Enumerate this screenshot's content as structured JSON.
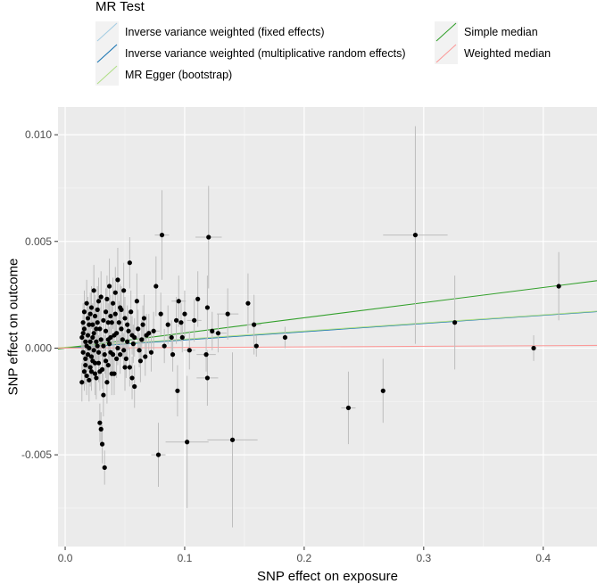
{
  "chart_data": {
    "type": "scatter",
    "title": "",
    "xlabel": "SNP effect on exposure",
    "ylabel": "SNP effect on outcome",
    "xlim": [
      -0.006,
      0.445
    ],
    "ylim": [
      -0.0093,
      0.0113
    ],
    "x_ticks": [
      0.0,
      0.1,
      0.2,
      0.3,
      0.4
    ],
    "x_tick_labels": [
      "0.0",
      "0.1",
      "0.2",
      "0.3",
      "0.4"
    ],
    "y_ticks": [
      -0.005,
      0.0,
      0.005,
      0.01
    ],
    "y_tick_labels": [
      "-0.005",
      "0.000",
      "0.005",
      "0.010"
    ],
    "grid": true,
    "legend": {
      "title": "MR Test",
      "position": "top",
      "entries": [
        {
          "label": "Inverse variance weighted (fixed effects)",
          "color": "#a6cee3"
        },
        {
          "label": "Inverse variance weighted (multiplicative random effects)",
          "color": "#1f78b4"
        },
        {
          "label": "MR Egger (bootstrap)",
          "color": "#b2df8a"
        },
        {
          "label": "Simple median",
          "color": "#33a02c"
        },
        {
          "label": "Weighted median",
          "color": "#fb9a99"
        }
      ]
    },
    "lines": [
      {
        "name": "Inverse variance weighted (fixed effects)",
        "color": "#a6cee3",
        "intercept": 0.0,
        "slope": 0.00385
      },
      {
        "name": "Inverse variance weighted (multiplicative random effects)",
        "color": "#1f78b4",
        "intercept": 0.0,
        "slope": 0.00385
      },
      {
        "name": "MR Egger (bootstrap)",
        "color": "#b2df8a",
        "intercept": 4e-05,
        "slope": 0.0038
      },
      {
        "name": "Simple median",
        "color": "#33a02c",
        "intercept": 0.0,
        "slope": 0.0071
      },
      {
        "name": "Weighted median",
        "color": "#fb9a99",
        "intercept": 0.0,
        "slope": 0.00028
      }
    ],
    "points": [
      {
        "x": 0.081,
        "y": 0.0053,
        "xerr": 0.006,
        "yerr": 0.0021
      },
      {
        "x": 0.12,
        "y": 0.0052,
        "xerr": 0.011,
        "yerr": 0.0024
      },
      {
        "x": 0.293,
        "y": 0.0053,
        "xerr": 0.027,
        "yerr": 0.0051
      },
      {
        "x": 0.413,
        "y": 0.0029,
        "xerr": 0.0,
        "yerr": 0.0016
      },
      {
        "x": 0.392,
        "y": 0.0,
        "xerr": 0.0,
        "yerr": 0.0006
      },
      {
        "x": 0.326,
        "y": 0.0012,
        "xerr": 0.0,
        "yerr": 0.0022
      },
      {
        "x": 0.237,
        "y": -0.0028,
        "xerr": 0.006,
        "yerr": 0.0017
      },
      {
        "x": 0.266,
        "y": -0.002,
        "xerr": 0.0,
        "yerr": 0.0015
      },
      {
        "x": 0.184,
        "y": 0.0005,
        "xerr": 0.0,
        "yerr": 0.0005
      },
      {
        "x": 0.16,
        "y": 0.0001,
        "xerr": 0.0,
        "yerr": 0.0005
      },
      {
        "x": 0.158,
        "y": 0.0011,
        "xerr": 0.006,
        "yerr": 0.0014
      },
      {
        "x": 0.153,
        "y": 0.0021,
        "xerr": 0.0,
        "yerr": 0.0014
      },
      {
        "x": 0.14,
        "y": -0.0043,
        "xerr": 0.021,
        "yerr": 0.0041
      },
      {
        "x": 0.102,
        "y": -0.0044,
        "xerr": 0.018,
        "yerr": 0.0031
      },
      {
        "x": 0.078,
        "y": -0.005,
        "xerr": 0.006,
        "yerr": 0.0015
      },
      {
        "x": 0.094,
        "y": -0.002,
        "xerr": 0.0,
        "yerr": 0.0012
      },
      {
        "x": 0.118,
        "y": -0.0003,
        "xerr": 0.008,
        "yerr": 0.0008
      },
      {
        "x": 0.119,
        "y": -0.0014,
        "xerr": 0.009,
        "yerr": 0.0013
      },
      {
        "x": 0.136,
        "y": 0.0016,
        "xerr": 0.009,
        "yerr": 0.0012
      },
      {
        "x": 0.128,
        "y": 0.0007,
        "xerr": 0.007,
        "yerr": 0.0009
      },
      {
        "x": 0.123,
        "y": 0.0008,
        "xerr": 0.0,
        "yerr": 0.0009
      },
      {
        "x": 0.119,
        "y": 0.0019,
        "xerr": 0.0,
        "yerr": 0.0015
      },
      {
        "x": 0.111,
        "y": 0.0023,
        "xerr": 0.0,
        "yerr": 0.0013
      },
      {
        "x": 0.108,
        "y": 0.0013,
        "xerr": 0.006,
        "yerr": 0.001
      },
      {
        "x": 0.104,
        "y": -0.0001,
        "xerr": 0.005,
        "yerr": 0.0009
      },
      {
        "x": 0.1,
        "y": 0.0016,
        "xerr": 0.0,
        "yerr": 0.0011
      },
      {
        "x": 0.098,
        "y": 0.0005,
        "xerr": 0.0,
        "yerr": 0.0007
      },
      {
        "x": 0.095,
        "y": 0.0022,
        "xerr": 0.006,
        "yerr": 0.0012
      },
      {
        "x": 0.093,
        "y": 0.0013,
        "xerr": 0.0,
        "yerr": 0.0011
      },
      {
        "x": 0.089,
        "y": 0.0005,
        "xerr": 0.0,
        "yerr": 0.0008
      },
      {
        "x": 0.086,
        "y": 0.0011,
        "xerr": 0.0,
        "yerr": 0.0009
      },
      {
        "x": 0.08,
        "y": 0.0016,
        "xerr": 0.0,
        "yerr": 0.001
      },
      {
        "x": 0.076,
        "y": 0.0029,
        "xerr": 0.0,
        "yerr": 0.0014
      },
      {
        "x": 0.074,
        "y": 0.0008,
        "xerr": 0.005,
        "yerr": 0.0009
      },
      {
        "x": 0.072,
        "y": -0.0002,
        "xerr": 0.0,
        "yerr": 0.0009
      },
      {
        "x": 0.068,
        "y": 0.0006,
        "xerr": 0.0,
        "yerr": 0.001
      },
      {
        "x": 0.066,
        "y": 0.0014,
        "xerr": 0.0,
        "yerr": 0.0011
      },
      {
        "x": 0.063,
        "y": -0.0006,
        "xerr": 0.0,
        "yerr": 0.001
      },
      {
        "x": 0.06,
        "y": 0.0022,
        "xerr": 0.0,
        "yerr": 0.0013
      },
      {
        "x": 0.058,
        "y": 0.0005,
        "xerr": 0.0,
        "yerr": 0.0009
      },
      {
        "x": 0.056,
        "y": -0.0014,
        "xerr": 0.0,
        "yerr": 0.001
      },
      {
        "x": 0.054,
        "y": 0.004,
        "xerr": 0.0,
        "yerr": 0.0012
      },
      {
        "x": 0.052,
        "y": 0.0011,
        "xerr": 0.0,
        "yerr": 0.0009
      },
      {
        "x": 0.05,
        "y": -0.0009,
        "xerr": 0.0,
        "yerr": 0.0011
      },
      {
        "x": 0.049,
        "y": 0.0027,
        "xerr": 0.0,
        "yerr": 0.0013
      },
      {
        "x": 0.047,
        "y": 0.0018,
        "xerr": 0.0,
        "yerr": 0.0011
      },
      {
        "x": 0.046,
        "y": -0.0003,
        "xerr": 0.0,
        "yerr": 0.0009
      },
      {
        "x": 0.044,
        "y": 0.0032,
        "xerr": 0.0,
        "yerr": 0.0015
      },
      {
        "x": 0.043,
        "y": 0.0007,
        "xerr": 0.0,
        "yerr": 0.0009
      },
      {
        "x": 0.041,
        "y": -0.0012,
        "xerr": 0.0,
        "yerr": 0.001
      },
      {
        "x": 0.04,
        "y": 0.0021,
        "xerr": 0.0,
        "yerr": 0.0012
      },
      {
        "x": 0.039,
        "y": 0.0012,
        "xerr": 0.0,
        "yerr": 0.001
      },
      {
        "x": 0.038,
        "y": -0.0002,
        "xerr": 0.0,
        "yerr": 0.0009
      },
      {
        "x": 0.037,
        "y": 0.0029,
        "xerr": 0.0,
        "yerr": 0.0013
      },
      {
        "x": 0.036,
        "y": 0.0004,
        "xerr": 0.0,
        "yerr": 0.0009
      },
      {
        "x": 0.035,
        "y": -0.0016,
        "xerr": 0.0,
        "yerr": 0.001
      },
      {
        "x": 0.034,
        "y": 0.0017,
        "xerr": 0.0,
        "yerr": 0.0011
      },
      {
        "x": 0.033,
        "y": -0.0056,
        "xerr": 0.0,
        "yerr": 0.0008
      },
      {
        "x": 0.032,
        "y": -0.0022,
        "xerr": 0.0,
        "yerr": 0.001
      },
      {
        "x": 0.031,
        "y": -0.0045,
        "xerr": 0.0,
        "yerr": 0.0009
      },
      {
        "x": 0.03,
        "y": -0.0038,
        "xerr": 0.0,
        "yerr": 0.0008
      },
      {
        "x": 0.029,
        "y": -0.0035,
        "xerr": 0.0,
        "yerr": 0.0009
      },
      {
        "x": 0.03,
        "y": 0.0024,
        "xerr": 0.0,
        "yerr": 0.0012
      },
      {
        "x": 0.029,
        "y": 0.0009,
        "xerr": 0.0,
        "yerr": 0.001
      },
      {
        "x": 0.028,
        "y": -0.0007,
        "xerr": 0.0,
        "yerr": 0.0009
      },
      {
        "x": 0.027,
        "y": 0.0018,
        "xerr": 0.0,
        "yerr": 0.0011
      },
      {
        "x": 0.026,
        "y": 0.0003,
        "xerr": 0.0,
        "yerr": 0.0009
      },
      {
        "x": 0.025,
        "y": -0.0012,
        "xerr": 0.0,
        "yerr": 0.001
      },
      {
        "x": 0.024,
        "y": 0.0027,
        "xerr": 0.0,
        "yerr": 0.0012
      },
      {
        "x": 0.023,
        "y": 0.0011,
        "xerr": 0.0,
        "yerr": 0.001
      },
      {
        "x": 0.022,
        "y": -0.0004,
        "xerr": 0.0,
        "yerr": 0.0009
      },
      {
        "x": 0.021,
        "y": 0.0016,
        "xerr": 0.0,
        "yerr": 0.001
      },
      {
        "x": 0.02,
        "y": -0.0015,
        "xerr": 0.0,
        "yerr": 0.001
      },
      {
        "x": 0.019,
        "y": 0.0006,
        "xerr": 0.0,
        "yerr": 0.0009
      },
      {
        "x": 0.018,
        "y": 0.0021,
        "xerr": 0.0,
        "yerr": 0.0011
      },
      {
        "x": 0.017,
        "y": -0.0008,
        "xerr": 0.0,
        "yerr": 0.0009
      },
      {
        "x": 0.016,
        "y": 0.0009,
        "xerr": 0.0,
        "yerr": 0.0009
      },
      {
        "x": 0.015,
        "y": -0.0002,
        "xerr": 0.0,
        "yerr": 0.0008
      },
      {
        "x": 0.014,
        "y": 0.0005,
        "xerr": 0.0,
        "yerr": 0.0008
      },
      {
        "x": 0.014,
        "y": -0.0016,
        "xerr": 0.0,
        "yerr": 0.0009
      },
      {
        "x": 0.015,
        "y": 0.0012,
        "xerr": 0.0,
        "yerr": 0.0009
      },
      {
        "x": 0.016,
        "y": -0.0011,
        "xerr": 0.0,
        "yerr": 0.0009
      },
      {
        "x": 0.017,
        "y": 0.0003,
        "xerr": 0.0,
        "yerr": 0.0008
      },
      {
        "x": 0.018,
        "y": -0.0013,
        "xerr": 0.0,
        "yerr": 0.0009
      },
      {
        "x": 0.019,
        "y": 0.0014,
        "xerr": 0.0,
        "yerr": 0.001
      },
      {
        "x": 0.02,
        "y": 0.0,
        "xerr": 0.0,
        "yerr": 0.0008
      },
      {
        "x": 0.021,
        "y": -0.0009,
        "xerr": 0.0,
        "yerr": 0.0009
      },
      {
        "x": 0.022,
        "y": 0.0019,
        "xerr": 0.0,
        "yerr": 0.001
      },
      {
        "x": 0.023,
        "y": -0.0006,
        "xerr": 0.0,
        "yerr": 0.0009
      },
      {
        "x": 0.024,
        "y": 0.0007,
        "xerr": 0.0,
        "yerr": 0.0009
      },
      {
        "x": 0.025,
        "y": 0.0015,
        "xerr": 0.0,
        "yerr": 0.001
      },
      {
        "x": 0.026,
        "y": -0.0014,
        "xerr": 0.0,
        "yerr": 0.001
      },
      {
        "x": 0.027,
        "y": 0.0001,
        "xerr": 0.0,
        "yerr": 0.0008
      },
      {
        "x": 0.028,
        "y": 0.0022,
        "xerr": 0.0,
        "yerr": 0.0011
      },
      {
        "x": 0.031,
        "y": -0.001,
        "xerr": 0.0,
        "yerr": 0.0009
      },
      {
        "x": 0.032,
        "y": 0.0013,
        "xerr": 0.0,
        "yerr": 0.001
      },
      {
        "x": 0.033,
        "y": -0.0003,
        "xerr": 0.0,
        "yerr": 0.0009
      },
      {
        "x": 0.034,
        "y": 0.0008,
        "xerr": 0.0,
        "yerr": 0.0009
      },
      {
        "x": 0.035,
        "y": 0.0023,
        "xerr": 0.0,
        "yerr": 0.0011
      },
      {
        "x": 0.036,
        "y": -0.0008,
        "xerr": 0.0,
        "yerr": 0.0009
      },
      {
        "x": 0.037,
        "y": 0.0002,
        "xerr": 0.0,
        "yerr": 0.0008
      },
      {
        "x": 0.038,
        "y": 0.0015,
        "xerr": 0.0,
        "yerr": 0.001
      },
      {
        "x": 0.039,
        "y": -0.0012,
        "xerr": 0.0,
        "yerr": 0.001
      },
      {
        "x": 0.041,
        "y": 0.0006,
        "xerr": 0.0,
        "yerr": 0.0009
      },
      {
        "x": 0.042,
        "y": 0.0026,
        "xerr": 0.0,
        "yerr": 0.0012
      },
      {
        "x": 0.043,
        "y": -0.0005,
        "xerr": 0.0,
        "yerr": 0.0009
      },
      {
        "x": 0.045,
        "y": 0.0012,
        "xerr": 0.0,
        "yerr": 0.001
      },
      {
        "x": 0.046,
        "y": 0.0019,
        "xerr": 0.0,
        "yerr": 0.0011
      },
      {
        "x": 0.048,
        "y": 0.0004,
        "xerr": 0.0,
        "yerr": 0.0009
      },
      {
        "x": 0.05,
        "y": 0.0014,
        "xerr": 0.0,
        "yerr": 0.001
      },
      {
        "x": 0.051,
        "y": -0.0005,
        "xerr": 0.0,
        "yerr": 0.0009
      },
      {
        "x": 0.053,
        "y": 0.0008,
        "xerr": 0.0,
        "yerr": 0.0009
      },
      {
        "x": 0.055,
        "y": 0.0017,
        "xerr": 0.0,
        "yerr": 0.001
      },
      {
        "x": 0.057,
        "y": 0.0002,
        "xerr": 0.0,
        "yerr": 0.0009
      },
      {
        "x": 0.058,
        "y": -0.0018,
        "xerr": 0.0,
        "yerr": 0.001
      },
      {
        "x": 0.061,
        "y": 0.0009,
        "xerr": 0.0,
        "yerr": 0.0009
      },
      {
        "x": 0.064,
        "y": 0.0004,
        "xerr": 0.0,
        "yerr": 0.0009
      },
      {
        "x": 0.067,
        "y": -0.0004,
        "xerr": 0.0,
        "yerr": 0.0009
      },
      {
        "x": 0.07,
        "y": 0.0007,
        "xerr": 0.0,
        "yerr": 0.0009
      },
      {
        "x": 0.016,
        "y": 0.0017,
        "xerr": 0.0,
        "yerr": 0.001
      },
      {
        "x": 0.018,
        "y": 0.0001,
        "xerr": 0.0,
        "yerr": 0.0008
      },
      {
        "x": 0.02,
        "y": 0.0011,
        "xerr": 0.0,
        "yerr": 0.0009
      },
      {
        "x": 0.022,
        "y": -0.0011,
        "xerr": 0.0,
        "yerr": 0.0009
      },
      {
        "x": 0.024,
        "y": -0.0001,
        "xerr": 0.0,
        "yerr": 0.0008
      },
      {
        "x": 0.026,
        "y": 0.0009,
        "xerr": 0.0,
        "yerr": 0.0009
      },
      {
        "x": 0.028,
        "y": -0.0002,
        "xerr": 0.0,
        "yerr": 0.0008
      },
      {
        "x": 0.03,
        "y": 0.0004,
        "xerr": 0.0,
        "yerr": 0.0008
      },
      {
        "x": 0.015,
        "y": 0.0007,
        "xerr": 0.0,
        "yerr": 0.0008
      },
      {
        "x": 0.017,
        "y": -0.0005,
        "xerr": 0.0,
        "yerr": 0.0008
      },
      {
        "x": 0.019,
        "y": -0.0003,
        "xerr": 0.0,
        "yerr": 0.0008
      },
      {
        "x": 0.021,
        "y": 0.0003,
        "xerr": 0.0,
        "yerr": 0.0008
      },
      {
        "x": 0.023,
        "y": 0.0005,
        "xerr": 0.0,
        "yerr": 0.0008
      },
      {
        "x": 0.025,
        "y": -0.0007,
        "xerr": 0.0,
        "yerr": 0.0008
      },
      {
        "x": 0.027,
        "y": 0.0012,
        "xerr": 0.0,
        "yerr": 0.0009
      },
      {
        "x": 0.029,
        "y": -0.0011,
        "xerr": 0.0,
        "yerr": 0.0009
      },
      {
        "x": 0.032,
        "y": 0.0001,
        "xerr": 0.0,
        "yerr": 0.0008
      },
      {
        "x": 0.034,
        "y": -0.0006,
        "xerr": 0.0,
        "yerr": 0.0008
      },
      {
        "x": 0.036,
        "y": 0.0012,
        "xerr": 0.0,
        "yerr": 0.0009
      },
      {
        "x": 0.038,
        "y": 0.0005,
        "xerr": 0.0,
        "yerr": 0.0008
      },
      {
        "x": 0.04,
        "y": -0.0003,
        "xerr": 0.0,
        "yerr": 0.0008
      },
      {
        "x": 0.042,
        "y": 0.0016,
        "xerr": 0.0,
        "yerr": 0.0009
      },
      {
        "x": 0.044,
        "y": 0.0,
        "xerr": 0.0,
        "yerr": 0.0008
      },
      {
        "x": 0.047,
        "y": 0.0009,
        "xerr": 0.0,
        "yerr": 0.0009
      },
      {
        "x": 0.049,
        "y": -0.0001,
        "xerr": 0.0,
        "yerr": 0.0008
      },
      {
        "x": 0.052,
        "y": 0.0003,
        "xerr": 0.0,
        "yerr": 0.0008
      },
      {
        "x": 0.054,
        "y": -0.0009,
        "xerr": 0.0,
        "yerr": 0.0009
      },
      {
        "x": 0.056,
        "y": 0.0006,
        "xerr": 0.0,
        "yerr": 0.0009
      },
      {
        "x": 0.062,
        "y": -0.0001,
        "xerr": 0.0,
        "yerr": 0.0008
      },
      {
        "x": 0.065,
        "y": 0.0011,
        "xerr": 0.0,
        "yerr": 0.0009
      },
      {
        "x": 0.083,
        "y": 0.0001,
        "xerr": 0.0,
        "yerr": 0.0008
      },
      {
        "x": 0.09,
        "y": -0.0003,
        "xerr": 0.0,
        "yerr": 0.0008
      },
      {
        "x": 0.097,
        "y": 0.0012,
        "xerr": 0.0,
        "yerr": 0.0009
      }
    ]
  }
}
